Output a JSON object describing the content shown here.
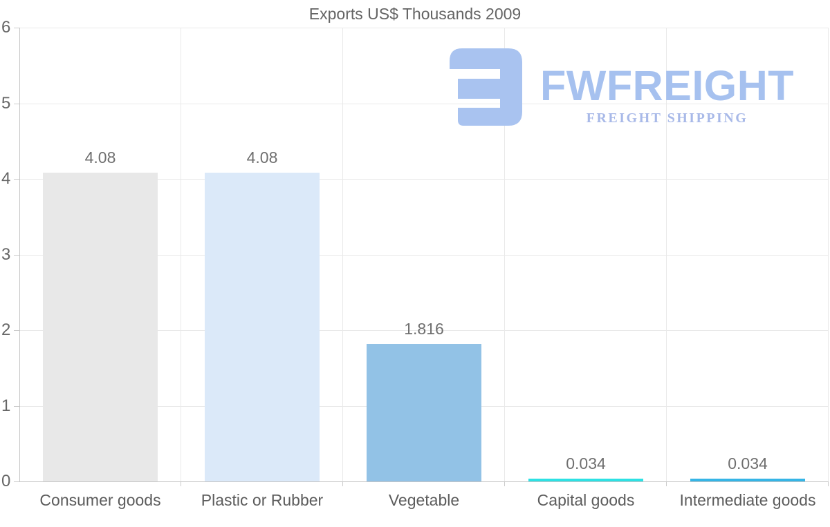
{
  "page": {
    "background": "#ffffff"
  },
  "chart_data": {
    "type": "bar",
    "title": "Exports US$ Thousands 2009",
    "categories": [
      "Consumer goods",
      "Plastic or Rubber",
      "Vegetable",
      "Capital goods",
      "Intermediate goods"
    ],
    "values": [
      4.08,
      4.08,
      1.816,
      0.034,
      0.034
    ],
    "value_labels": [
      "4.08",
      "4.08",
      "1.816",
      "0.034",
      "0.034"
    ],
    "bar_colors": [
      "#e8e8e8",
      "#dbe9f9",
      "#92c2e6",
      "#2ee1e4",
      "#36b5e6"
    ],
    "xlabel": "",
    "ylabel": "",
    "ylim": [
      0,
      6
    ],
    "yticks": [
      0,
      1,
      2,
      3,
      4,
      5,
      6
    ],
    "grid": true,
    "legend": false,
    "gridline_color": "#e9e9e9",
    "axis_color": "#c6c6c6",
    "tick_color": "#cccccc",
    "title_color": "#646464",
    "tick_label_color": "#666666",
    "value_label_color": "#6f6f6f",
    "category_label_color": "#5c5c5c"
  },
  "watermark": {
    "brand": "FWFREIGHT",
    "tagline": "FREIGHT SHIPPING",
    "mark_color": "#a9c3f0",
    "brand_color": "#a6c1ef",
    "tagline_color": "#a8b9e8"
  }
}
